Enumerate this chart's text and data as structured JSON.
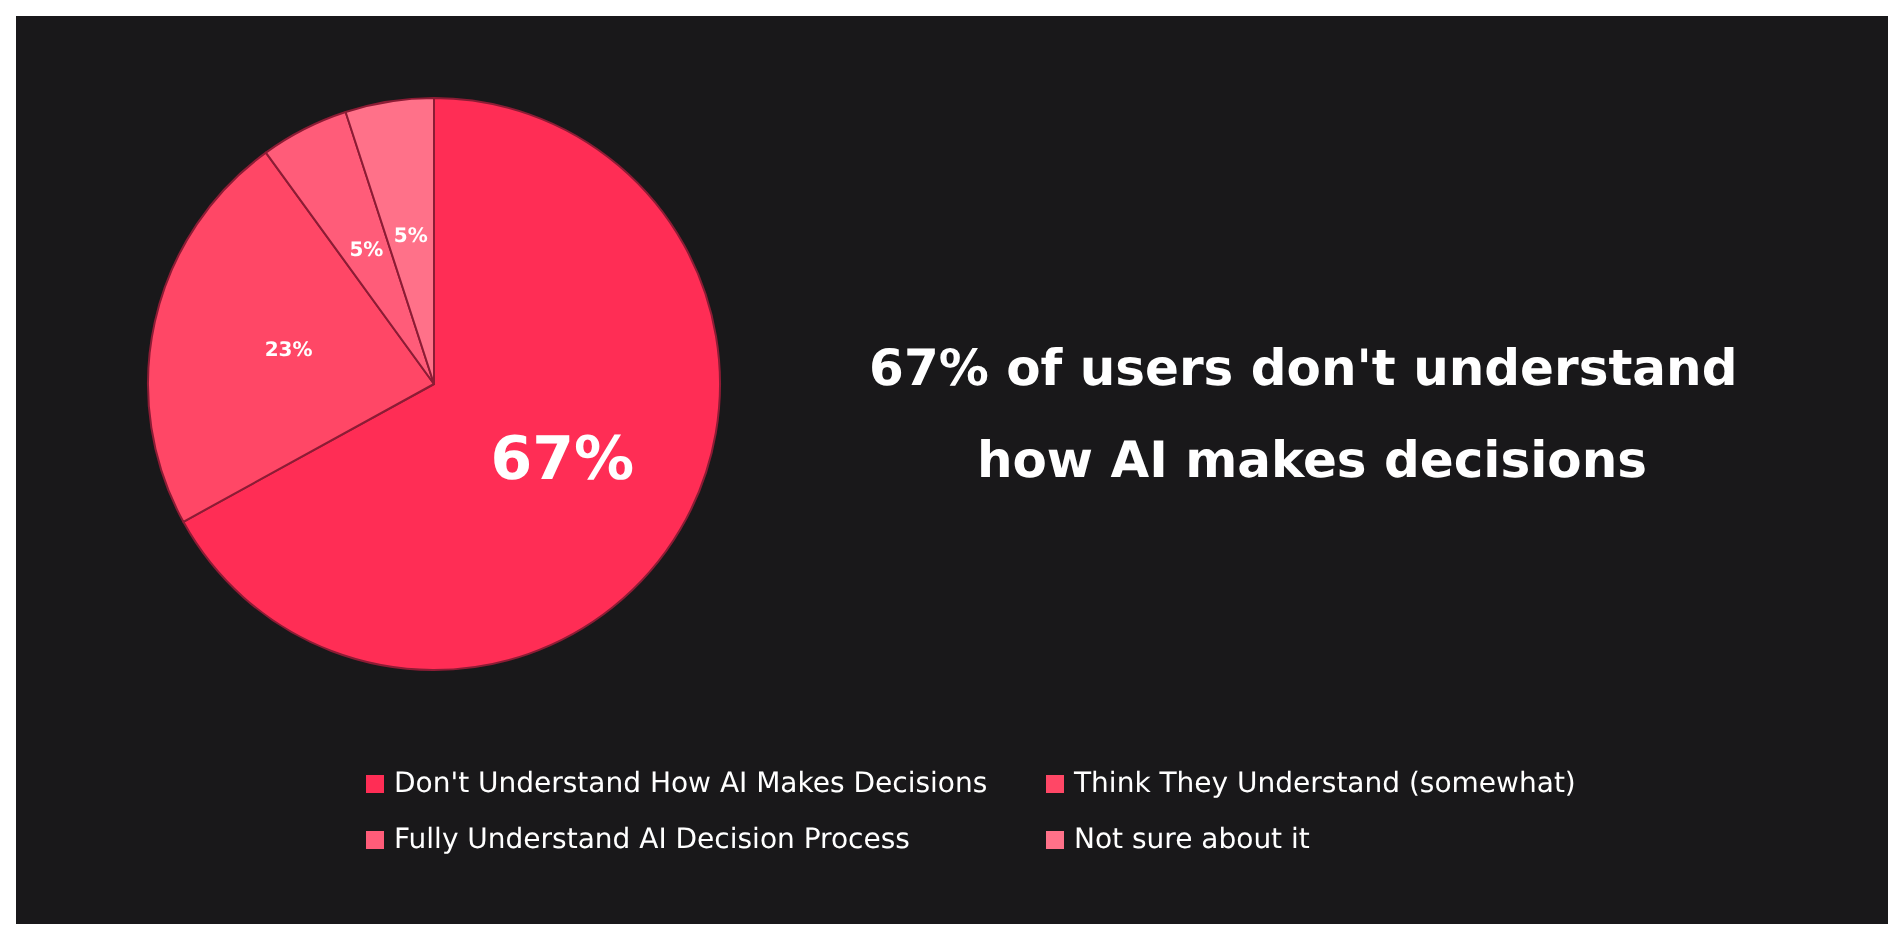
{
  "chart_data": {
    "type": "pie",
    "title": "67% of users don't understand how AI makes decisions",
    "categories": [
      "Don't Understand How AI Makes Decisions",
      "Think They Understand (somewhat)",
      "Fully Understand AI Decision Process",
      "Not sure about it"
    ],
    "values": [
      67,
      23,
      5,
      5
    ],
    "colors": [
      "#ff2d55",
      "#ff4766",
      "#ff5c79",
      "#ff7189"
    ],
    "value_labels": [
      "67%",
      "23%",
      "5%",
      "5%"
    ],
    "legend": "bottom"
  }
}
